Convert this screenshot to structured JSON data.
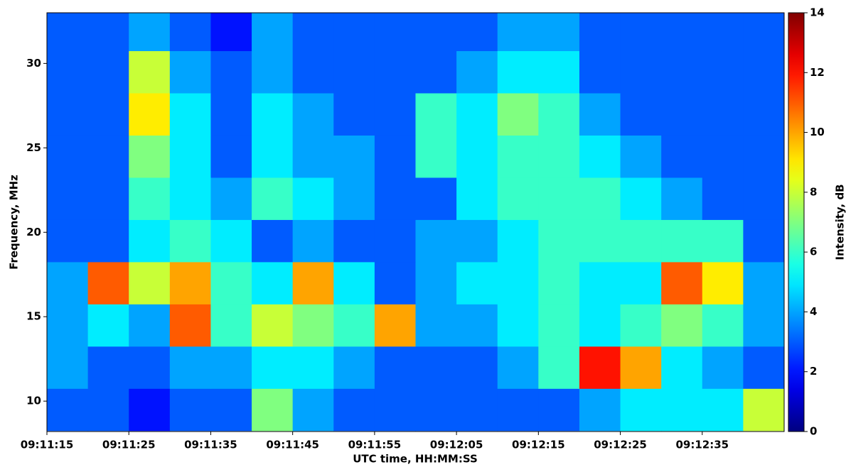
{
  "chart_data": {
    "type": "heatmap",
    "x_label": "UTC time, HH:MM:SS",
    "y_label": "Frequency, MHz",
    "colorbar_label": "Intensity, dB",
    "colormap": "jet",
    "x": [
      "09:11:15",
      "09:11:20",
      "09:11:25",
      "09:11:30",
      "09:11:35",
      "09:11:40",
      "09:11:45",
      "09:11:50",
      "09:11:55",
      "09:12:00",
      "09:12:05",
      "09:12:10",
      "09:12:15",
      "09:12:20",
      "09:12:25",
      "09:12:30",
      "09:12:35",
      "09:12:40"
    ],
    "y": [
      9.5,
      12,
      14.5,
      17,
      19.5,
      22,
      24.5,
      27,
      29.5,
      32
    ],
    "values": [
      [
        3,
        3,
        2,
        3,
        3,
        7,
        4,
        3,
        3,
        3,
        3,
        3,
        3,
        4,
        5,
        5,
        5,
        8
      ],
      [
        4,
        3,
        3,
        4,
        4,
        5,
        5,
        4,
        3,
        3,
        3,
        4,
        6,
        12,
        10,
        5,
        4,
        3
      ],
      [
        4,
        5,
        4,
        11,
        6,
        8,
        7,
        6,
        10,
        4,
        4,
        5,
        6,
        5,
        6,
        7,
        6,
        4
      ],
      [
        4,
        11,
        8,
        10,
        6,
        5,
        10,
        5,
        3,
        4,
        5,
        5,
        6,
        5,
        5,
        11,
        9,
        4
      ],
      [
        3,
        3,
        5,
        6,
        5,
        3,
        4,
        3,
        3,
        4,
        4,
        5,
        6,
        6,
        6,
        6,
        6,
        3
      ],
      [
        3,
        3,
        6,
        5,
        4,
        6,
        5,
        4,
        3,
        3,
        5,
        6,
        6,
        6,
        5,
        4,
        3,
        3
      ],
      [
        3,
        3,
        7,
        5,
        3,
        5,
        4,
        4,
        3,
        6,
        5,
        6,
        6,
        5,
        4,
        3,
        3,
        3
      ],
      [
        3,
        3,
        9,
        5,
        3,
        5,
        4,
        3,
        3,
        6,
        5,
        7,
        6,
        4,
        3,
        3,
        3,
        3
      ],
      [
        3,
        3,
        8,
        4,
        3,
        4,
        3,
        3,
        3,
        3,
        4,
        5,
        5,
        3,
        3,
        3,
        3,
        3
      ],
      [
        3,
        3,
        4,
        3,
        2,
        4,
        3,
        3,
        3,
        3,
        3,
        4,
        4,
        3,
        3,
        3,
        3,
        3
      ]
    ],
    "xlim": [
      "09:11:15",
      "09:12:45"
    ],
    "xticks": [
      "09:11:15",
      "09:11:25",
      "09:11:35",
      "09:11:45",
      "09:11:55",
      "09:12:05",
      "09:12:15",
      "09:12:25",
      "09:12:35"
    ],
    "ylim": [
      8.2,
      33
    ],
    "yticks": [
      10,
      15,
      20,
      25,
      30
    ],
    "clim": [
      0,
      14
    ],
    "cticks": [
      0,
      2,
      4,
      6,
      8,
      10,
      12,
      14
    ]
  }
}
